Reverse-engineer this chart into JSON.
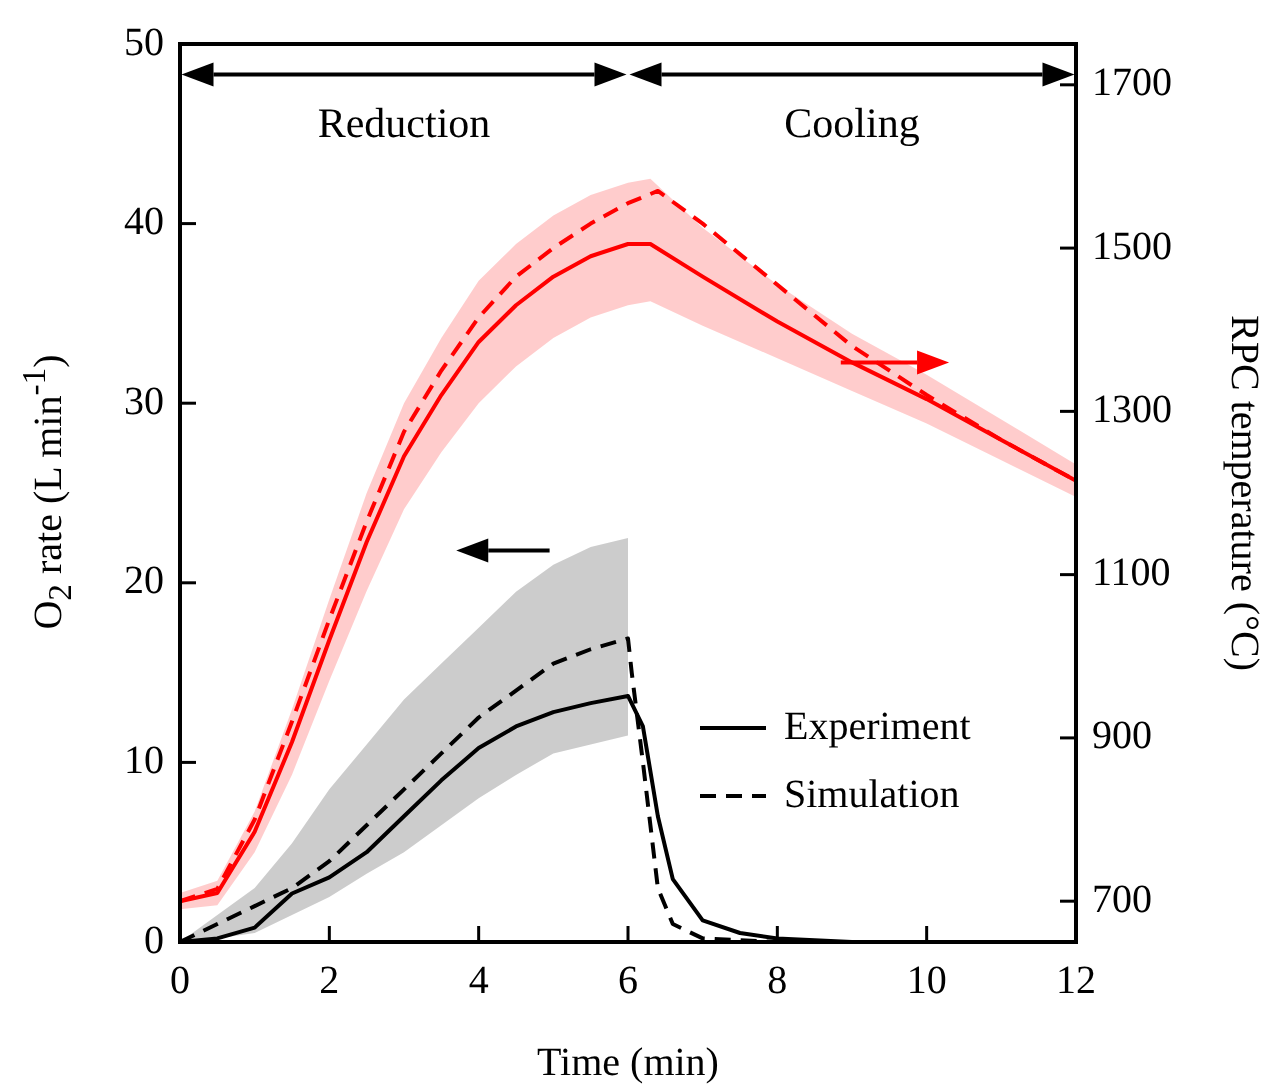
{
  "chart_data": {
    "type": "line",
    "xlabel": "Time (min)",
    "ylabel": "O$_{2}$ rate (L min$^{-1}$)",
    "y2label": "RPC temperature (°C)",
    "xlim": [
      0,
      12
    ],
    "xticks": [
      0,
      2,
      4,
      6,
      8,
      10,
      12
    ],
    "ylim": [
      0,
      50
    ],
    "yticks": [
      0,
      10,
      20,
      30,
      40,
      50
    ],
    "y2lim": [
      650,
      1750
    ],
    "y2ticks": [
      700,
      900,
      1100,
      1300,
      1500,
      1700
    ],
    "grid": false,
    "legend": "bottom right",
    "marker": "none",
    "annotations": [
      "Reduction",
      "Cooling"
    ],
    "series": [
      {
        "name": "Experiment",
        "color": "#000000",
        "line_style": "solid",
        "x": [
          0,
          0.5,
          1,
          1.5,
          2,
          2.5,
          3,
          3.5,
          4,
          4.5,
          5,
          5.5,
          6,
          6.2,
          6.4,
          6.6,
          7,
          7.5,
          8,
          9,
          12
        ],
        "values": [
          0,
          0.2,
          0.8,
          2.7,
          3.6,
          5,
          7,
          9,
          10.8,
          12,
          12.8,
          13.3,
          13.7,
          12,
          7,
          3.5,
          1.2,
          0.5,
          0.2,
          0,
          0
        ],
        "lower": [
          0,
          0.2,
          0.5,
          1.5,
          2.5,
          3.8,
          5,
          6.5,
          8,
          9.3,
          10.5,
          11,
          11.5,
          null,
          null,
          null,
          null,
          null,
          null,
          null,
          null
        ],
        "upper": [
          0,
          1.5,
          3,
          5.5,
          8.5,
          11,
          13.5,
          15.5,
          17.5,
          19.5,
          21,
          22,
          22.5,
          null,
          null,
          null,
          null,
          null,
          null,
          null,
          null
        ]
      },
      {
        "name": "Simulation",
        "color": "#000000",
        "line_style": "dashed",
        "x": [
          0,
          0.5,
          1,
          1.5,
          2,
          2.5,
          3,
          3.5,
          4,
          4.5,
          5,
          5.5,
          6,
          6.05,
          6.2,
          6.4,
          6.6,
          7,
          8,
          12
        ],
        "values": [
          0,
          1,
          2,
          3,
          4.5,
          6.5,
          8.5,
          10.5,
          12.5,
          14,
          15.5,
          16.3,
          16.9,
          15,
          10,
          3,
          1,
          0.2,
          0,
          0
        ]
      },
      {
        "color": "#ff0000",
        "axis": "y2",
        "line_style": "solid",
        "x": [
          0,
          0.5,
          1,
          1.5,
          2,
          2.5,
          3,
          3.5,
          4,
          4.5,
          5,
          5.5,
          6,
          6.3,
          7,
          8,
          9,
          10,
          11,
          12
        ],
        "values": [
          700,
          710,
          785,
          895,
          1020,
          1140,
          1245,
          1320,
          1385,
          1430,
          1465,
          1490,
          1505,
          1505,
          1465,
          1410,
          1360,
          1315,
          1265,
          1215
        ],
        "lower": [
          690,
          695,
          760,
          855,
          970,
          1080,
          1180,
          1250,
          1310,
          1355,
          1390,
          1415,
          1430,
          1435,
          1405,
          1365,
          1325,
          1285,
          1240,
          1195
        ],
        "upper": [
          710,
          725,
          810,
          935,
          1070,
          1200,
          1310,
          1390,
          1460,
          1505,
          1540,
          1565,
          1580,
          1585,
          1525,
          1455,
          1395,
          1345,
          1290,
          1235
        ]
      },
      {
        "color": "#ff0000",
        "axis": "y2",
        "line_style": "dashed",
        "x": [
          0,
          0.5,
          1,
          1.5,
          2,
          2.5,
          3,
          3.5,
          4,
          4.5,
          5,
          5.5,
          6,
          6.4,
          7,
          8,
          9,
          10,
          11,
          12
        ],
        "values": [
          700,
          715,
          800,
          920,
          1045,
          1165,
          1275,
          1350,
          1415,
          1465,
          1500,
          1530,
          1555,
          1570,
          1530,
          1455,
          1380,
          1320,
          1265,
          1215
        ]
      }
    ]
  }
}
